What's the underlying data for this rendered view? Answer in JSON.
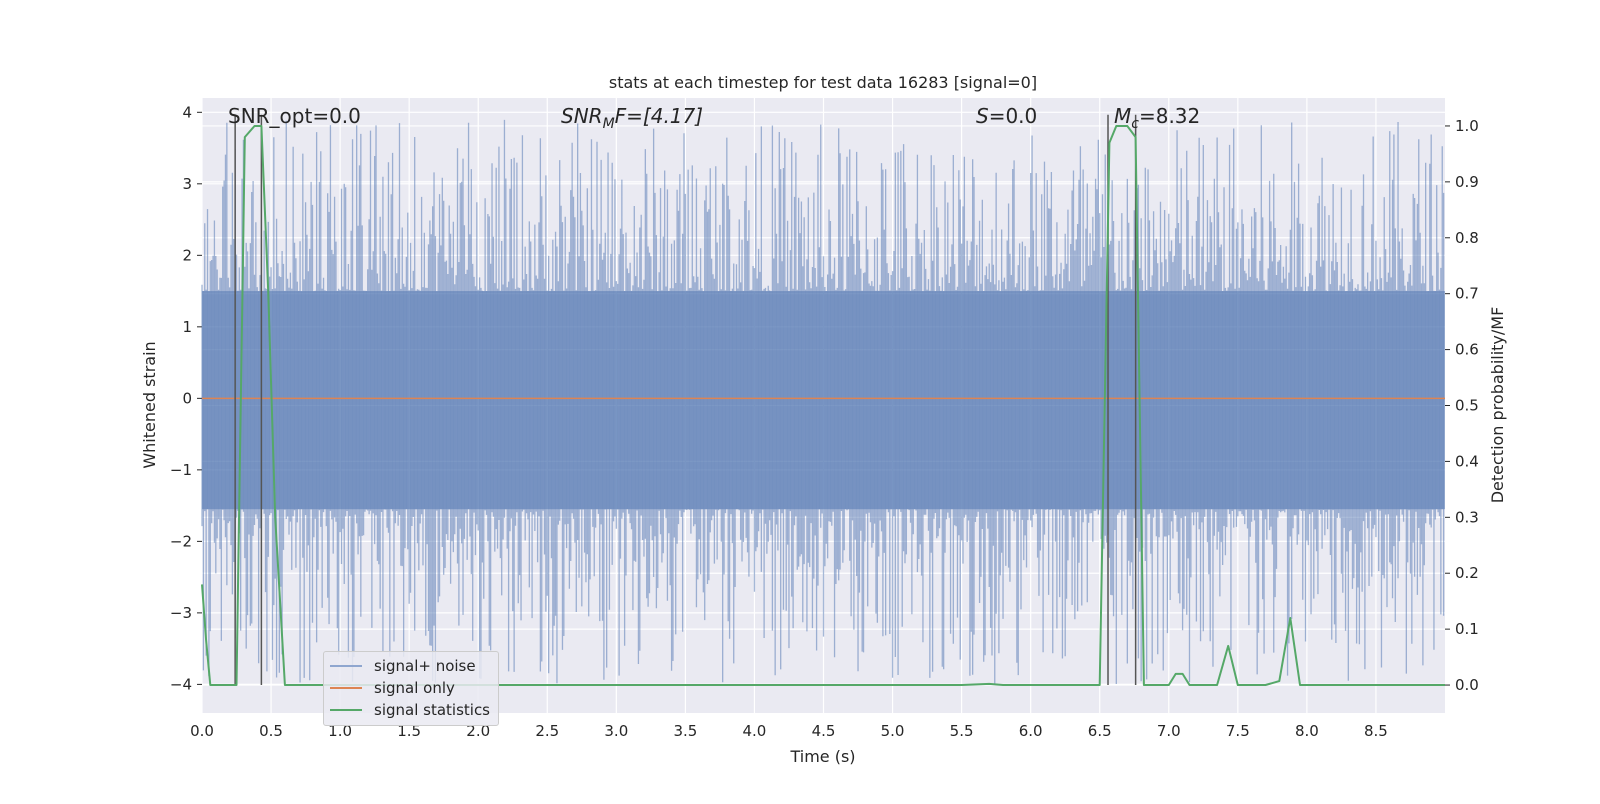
{
  "chart_data": {
    "type": "line",
    "title": "stats at each timestep for test data 16283 [signal=0]",
    "xlabel": "Time (s)",
    "ylabel_left": "Whitened strain",
    "ylabel_right": "Detection probability/MF",
    "xlim": [
      0,
      9.0
    ],
    "ylim_left": [
      -4.4,
      4.2
    ],
    "ylim_right": [
      -0.05,
      1.05
    ],
    "x_ticks": [
      "0.0",
      "0.5",
      "1.0",
      "1.5",
      "2.0",
      "2.5",
      "3.0",
      "3.5",
      "4.0",
      "4.5",
      "5.0",
      "5.5",
      "6.0",
      "6.5",
      "7.0",
      "7.5",
      "8.0",
      "8.5"
    ],
    "y_ticks_left": [
      "−4",
      "−3",
      "−2",
      "−1",
      "0",
      "1",
      "2",
      "3",
      "4"
    ],
    "y_ticks_right": [
      "0.0",
      "0.1",
      "0.2",
      "0.3",
      "0.4",
      "0.5",
      "0.6",
      "0.7",
      "0.8",
      "0.9",
      "1.0"
    ],
    "grid": true,
    "annotations": {
      "snr_opt": "SNR_opt=0.0",
      "snr_mf_base": "SNR",
      "snr_mf_sub": "M",
      "snr_mf_rest": "F=[4.17]",
      "s_base": "S",
      "s_rest": "=0.0",
      "mc_base": "M",
      "mc_sub": "c",
      "mc_rest": "=8.32"
    },
    "series": [
      {
        "name": "signal+ noise",
        "color": "#4c72b0",
        "alpha": 0.5,
        "envelope_pos": 1.5,
        "envelope_neg": -1.55,
        "spike_max": 3.9,
        "spike_min": -4.0
      },
      {
        "name": "signal only",
        "color": "#dd8452",
        "values_constant": 0.0
      },
      {
        "name": "signal statistics",
        "color": "#55a868",
        "x": [
          0.0,
          0.03,
          0.06,
          0.25,
          0.31,
          0.38,
          0.43,
          0.48,
          0.53,
          0.6,
          0.7,
          1.0,
          2.0,
          3.0,
          4.0,
          5.0,
          5.5,
          5.7,
          5.8,
          6.0,
          6.5,
          6.57,
          6.62,
          6.7,
          6.76,
          6.82,
          6.9,
          7.0,
          7.05,
          7.1,
          7.15,
          7.2,
          7.35,
          7.43,
          7.5,
          7.7,
          7.8,
          7.88,
          7.95,
          8.0,
          8.2,
          8.3,
          8.5,
          9.0
        ],
        "y": [
          0.18,
          0.08,
          0.0,
          0.0,
          0.98,
          1.0,
          1.0,
          0.7,
          0.3,
          0.0,
          0.0,
          0.0,
          0.0,
          0.0,
          0.0,
          0.0,
          0.0,
          0.002,
          0.0,
          0.0,
          0.0,
          0.97,
          1.0,
          1.0,
          0.98,
          0.0,
          0.0,
          0.0,
          0.02,
          0.02,
          0.0,
          0.0,
          0.0,
          0.07,
          0.0,
          0.0,
          0.007,
          0.12,
          0.0,
          0.0,
          0.0,
          0.0,
          0.0,
          0.0
        ]
      }
    ],
    "vertical_markers_x": [
      0.24,
      0.43,
      6.56,
      6.76
    ],
    "marker_color": "#555555"
  }
}
